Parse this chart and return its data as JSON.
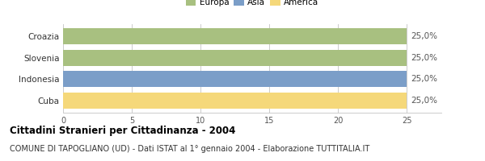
{
  "categories": [
    "Croazia",
    "Slovenia",
    "Indonesia",
    "Cuba"
  ],
  "values": [
    25,
    25,
    25,
    25
  ],
  "bar_colors": [
    "#a8c080",
    "#a8c080",
    "#7b9ec8",
    "#f5d87a"
  ],
  "legend_labels": [
    "Europa",
    "Asia",
    "America"
  ],
  "legend_colors": [
    "#a8c080",
    "#7b9ec8",
    "#f5d87a"
  ],
  "value_labels": [
    "25,0%",
    "25,0%",
    "25,0%",
    "25,0%"
  ],
  "xlim": [
    0,
    27.5
  ],
  "xticks": [
    0,
    5,
    10,
    15,
    20,
    25
  ],
  "title": "Cittadini Stranieri per Cittadinanza - 2004",
  "subtitle": "COMUNE DI TAPOGLIANO (UD) - Dati ISTAT al 1° gennaio 2004 - Elaborazione TUTTITALIA.IT",
  "title_fontsize": 8.5,
  "subtitle_fontsize": 7,
  "bar_height": 0.75,
  "background_color": "#ffffff",
  "grid_color": "#cccccc",
  "label_fontsize": 7.5,
  "value_fontsize": 7.5,
  "tick_fontsize": 7
}
